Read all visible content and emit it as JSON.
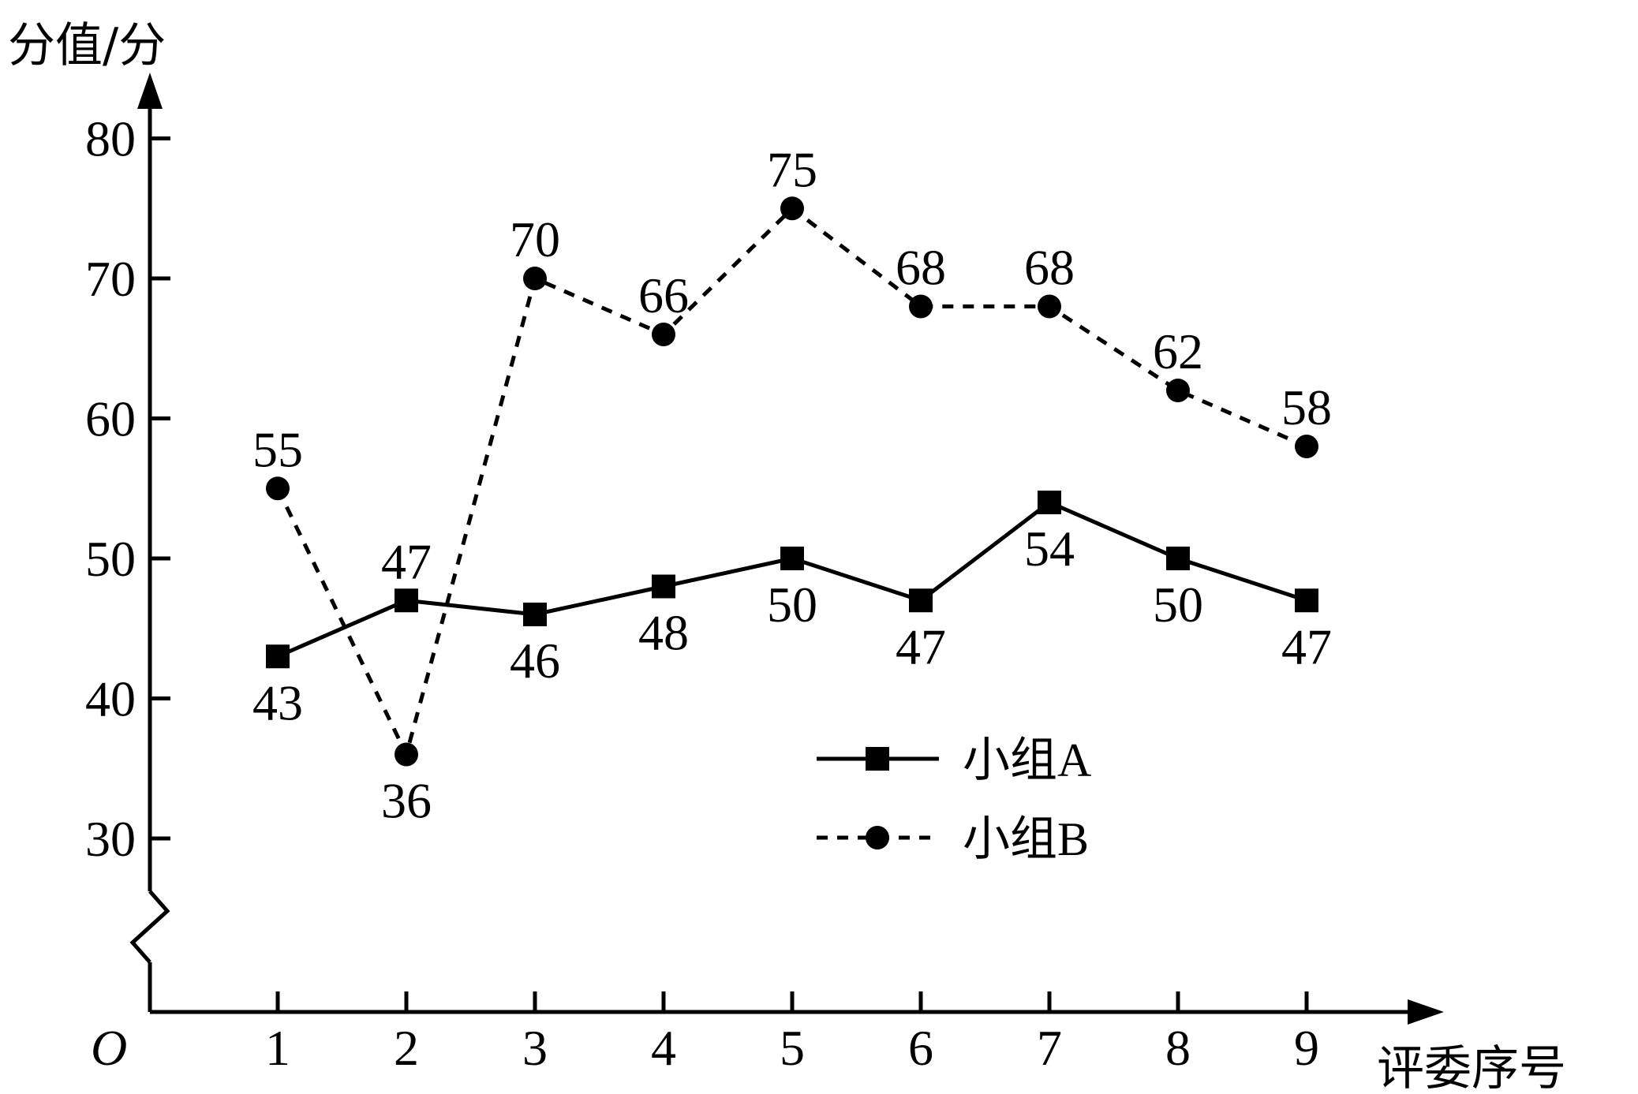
{
  "chart_data": {
    "type": "line",
    "ylabel": "分值/分",
    "xlabel": "评委序号",
    "origin_label": "O",
    "categories": [
      "1",
      "2",
      "3",
      "4",
      "5",
      "6",
      "7",
      "8",
      "9"
    ],
    "y_ticks": [
      "30",
      "40",
      "50",
      "60",
      "70",
      "80"
    ],
    "ylim": [
      30,
      80
    ],
    "y_axis_break": true,
    "grid": false,
    "legend_position": "bottom-right",
    "series": [
      {
        "name": "小组A",
        "style": "solid",
        "marker": "square",
        "values": [
          43,
          47,
          46,
          48,
          50,
          47,
          54,
          50,
          47
        ],
        "labels": [
          "43",
          "47",
          "46",
          "48",
          "50",
          "47",
          "54",
          "50",
          "47"
        ]
      },
      {
        "name": "小组B",
        "style": "dashed",
        "marker": "circle",
        "values": [
          55,
          36,
          70,
          66,
          75,
          68,
          68,
          62,
          58
        ],
        "labels": [
          "55",
          "36",
          "70",
          "66",
          "75",
          "68",
          "68",
          "62",
          "58"
        ]
      }
    ],
    "colors": {
      "line": "#000000",
      "background": "#ffffff"
    }
  }
}
